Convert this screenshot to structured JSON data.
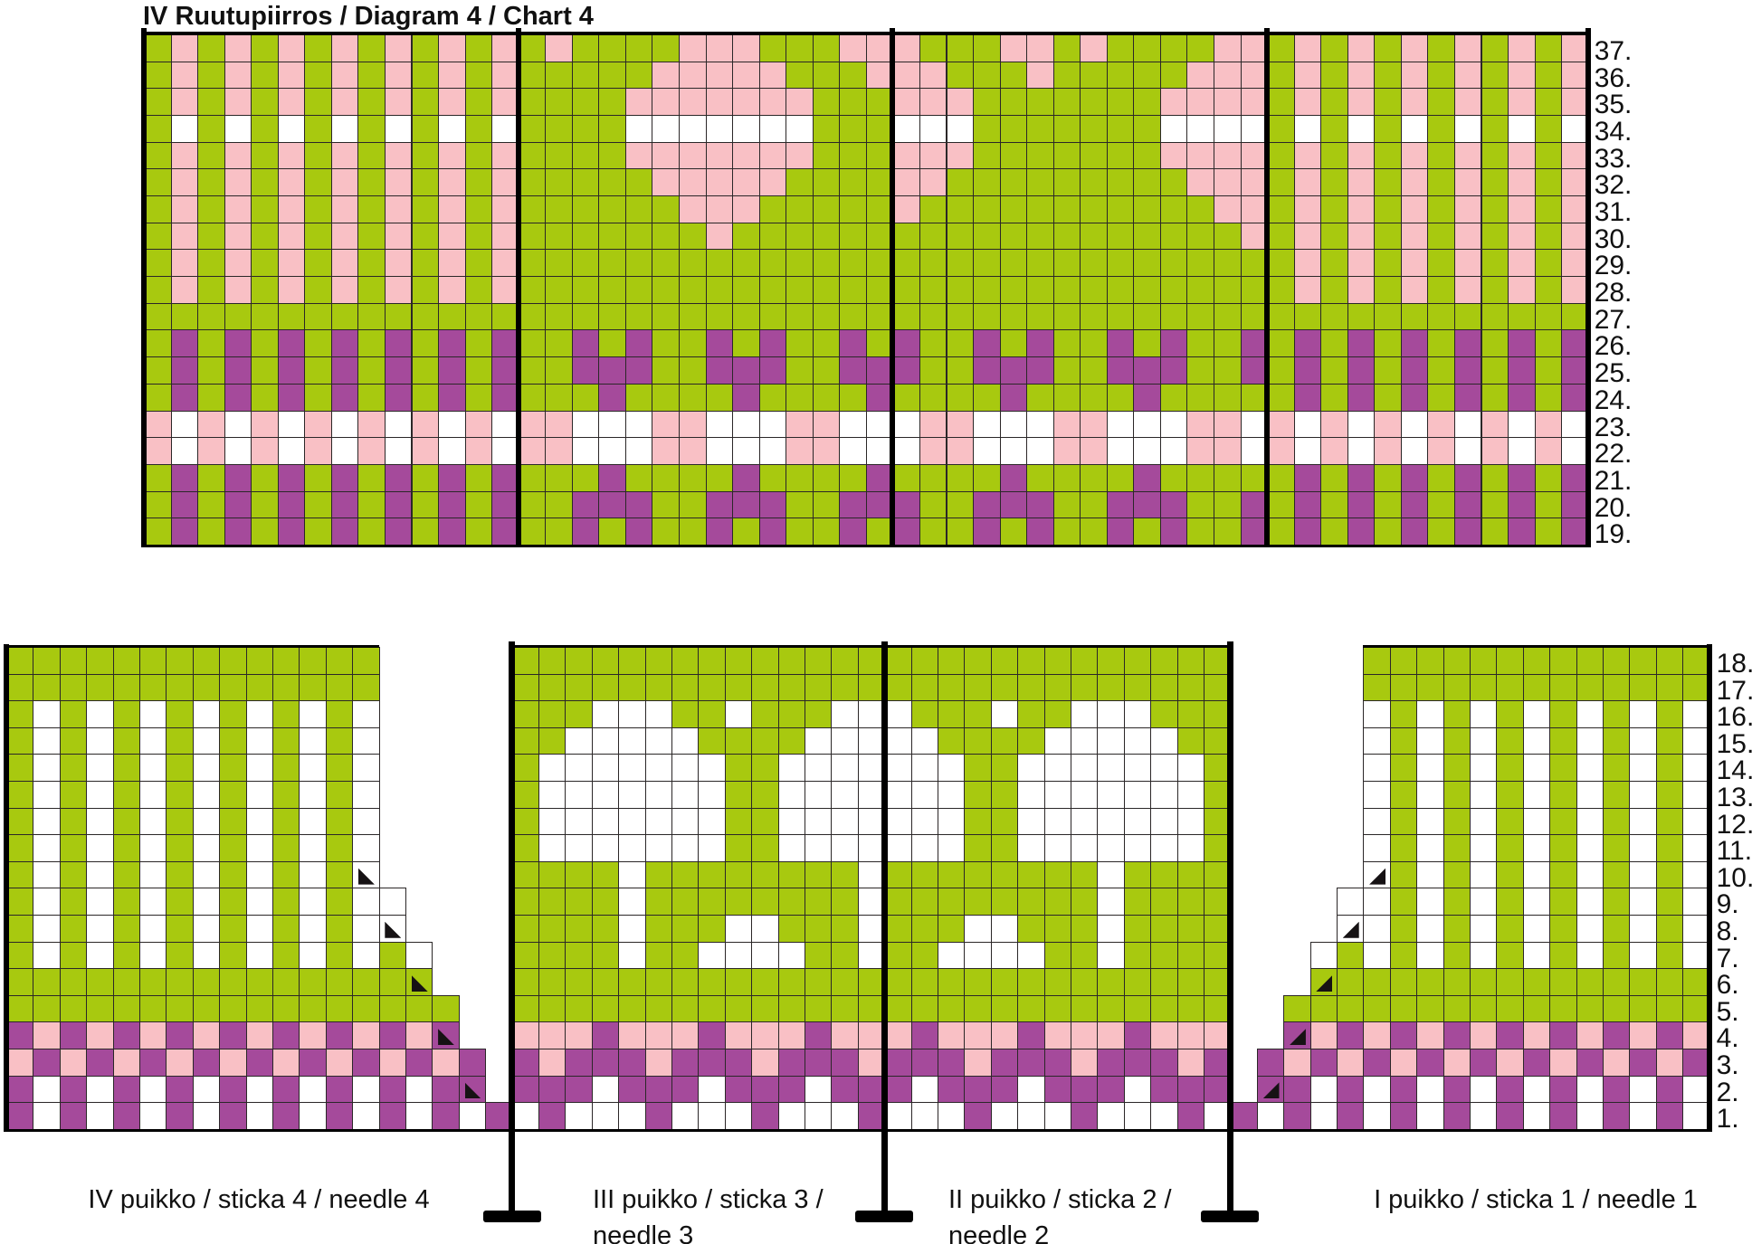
{
  "title": "IV Ruutupiirros / Diagram 4 / Chart 4",
  "colors": {
    "G": "#a8c90f",
    "P": "#f9c0c5",
    "U": "#a54a9b",
    "W": "#ffffff",
    "grid": "#2b2728",
    "line": "#000000",
    "text": "#111111"
  },
  "legend": {
    "G": "green main yarn",
    "P": "pink pattern yarn",
    "U": "purple pattern yarn",
    "W": "white pattern yarn",
    "triangle": "decrease symbol (knit 2 sts together)"
  },
  "top_chart": {
    "row_labels": [
      "37.",
      "36.",
      "35.",
      "34.",
      "33.",
      "32.",
      "31.",
      "30.",
      "29.",
      "28.",
      "27.",
      "26.",
      "25.",
      "24.",
      "23.",
      "22.",
      "21.",
      "20.",
      "19."
    ],
    "sections": [
      {
        "name": "needle-4",
        "rows": [
          "GPGPGPGPGPGPGP",
          "GPGPGPGPGPGPGP",
          "GPGPGPGPGPGPGP",
          "GWGWGWGWGWGWGW",
          "GPGPGPGPGPGPGP",
          "GPGPGPGPGPGPGP",
          "GPGPGPGPGPGPGP",
          "GPGPGPGPGPGPGP",
          "GPGPGPGPGPGPGP",
          "GPGPGPGPGPGPGP",
          "GGGGGGGGGGGGGG",
          "GUGUGUGUGUGUGU",
          "GUGUGUGUGUGUGU",
          "GUGUGUGUGUGUGU",
          "PWPWPWPWPWPWPW",
          "PWPWPWPWPWPWPW",
          "GUGUGUGUGUGUGU",
          "GUGUGUGUGUGUGU",
          "GUGUGUGUGUGUGU"
        ]
      },
      {
        "name": "needle-3",
        "rows": [
          "GPGGGGPPPGGGPP",
          "GGGGGPPPPPGGGP",
          "GGGGPPPPPPPGGG",
          "GGGGWWWWWWWGGG",
          "GGGGPPPPPPPGGG",
          "GGGGGPPPPPGGGG",
          "GGGGGGPPPGGGGG",
          "GGGGGGGPGGGGGG",
          "GGGGGGGGGGGGGG",
          "GGGGGGGGGGGGGG",
          "GGGGGGGGGGGGGG",
          "GGUGUGGUGUGGUG",
          "GGUUUGGUUUGGUU",
          "GGGUGGGGUGGGGU",
          "PPWWWPPWWWPPWW",
          "PPWWWPPWWWPPWW",
          "GGGUGGGGUGGGGU",
          "GGUUUGGUUUGGUU",
          "GGUGUGGUGUGGUG"
        ]
      },
      {
        "name": "needle-2",
        "rows": [
          "PGGGPPGPGGGGPP",
          "PPGGGPGGGGGPPP",
          "PPPGGGGGGGPPPP",
          "WWWGGGGGGGWWWW",
          "PPPGGGGGGGPPPP",
          "PPGGGGGGGGGPPP",
          "PGGGGGGGGGGGPP",
          "GGGGGGGGGGGGGP",
          "GGGGGGGGGGGGGG",
          "GGGGGGGGGGGGGG",
          "GGGGGGGGGGGGGG",
          "UGGUGUGGUGUGGU",
          "UGGUUUGGUUUGGU",
          "GGGGUGGGGUGGGG",
          "WPPWWWPPWWWPPW",
          "WPPWWWPPWWWPPW",
          "GGGGUGGGGUGGGG",
          "UGGUUUGGUUUGGU",
          "UGGUGUGGUGUGGU"
        ]
      },
      {
        "name": "needle-1",
        "rows": [
          "GPGPGPGPGPGP",
          "GPGPGPGPGPGP",
          "GPGPGPGPGPGP",
          "GWGWGWGWGWGW",
          "GPGPGPGPGPGP",
          "GPGPGPGPGPGP",
          "GPGPGPGPGPGP",
          "GPGPGPGPGPGP",
          "GPGPGPGPGPGP",
          "GPGPGPGPGPGP",
          "GGGGGGGGGGGG",
          "GUGUGUGUGUGU",
          "GUGUGUGUGUGU",
          "GUGUGUGUGUGU",
          "PWPWPWPWPWPW",
          "PWPWPWPWPWPW",
          "GUGUGUGUGUGU",
          "GUGUGUGUGUGU",
          "GUGUGUGUGUGU"
        ]
      }
    ]
  },
  "bottom_chart": {
    "row_labels": [
      "18.",
      "17.",
      "16.",
      "15.",
      "14.",
      "13.",
      "12.",
      "11.",
      "10.",
      "9.",
      "8.",
      "7.",
      "6.",
      "5.",
      "4.",
      "3.",
      "2.",
      "1."
    ],
    "sections": [
      {
        "name": "needle-4",
        "tri_dir": "l",
        "rows": [
          {
            "s": 1,
            "c": "GGGGGGGGGGGGGG"
          },
          {
            "s": 1,
            "c": "GGGGGGGGGGGGGG"
          },
          {
            "s": 1,
            "c": "GWGWGWGWGWGWGW"
          },
          {
            "s": 1,
            "c": "GWGWGWGWGWGWGW"
          },
          {
            "s": 1,
            "c": "GWGWGWGWGWGWGW"
          },
          {
            "s": 1,
            "c": "GWGWGWGWGWGWGW"
          },
          {
            "s": 1,
            "c": "GWGWGWGWGWGWGW"
          },
          {
            "s": 1,
            "c": "GWGWGWGWGWGWGW"
          },
          {
            "s": 1,
            "c": "GWGWGWGWGWGWGW",
            "t": 14
          },
          {
            "s": 1,
            "c": "GWGWGWGWGWGWGWW"
          },
          {
            "s": 1,
            "c": "GWGWGWGWGWGWGWW",
            "t": 15
          },
          {
            "s": 1,
            "c": "GWGWGWGWGWGWGWGW"
          },
          {
            "s": 1,
            "c": "GGGGGGGGGGGGGGGG",
            "t": 16
          },
          {
            "s": 1,
            "c": "GGGGGGGGGGGGGGGGG"
          },
          {
            "s": 1,
            "c": "UPUPUPUPUPUPUPUPU",
            "t": 17
          },
          {
            "s": 1,
            "c": "PUPUPUPUPUPUPUPUPU"
          },
          {
            "s": 1,
            "c": "UWUWUWUWUWUWUWUWUU",
            "t": 18
          },
          {
            "s": 1,
            "c": "UWUWUWUWUWUWUWUWUWU"
          }
        ]
      },
      {
        "name": "needle-3",
        "tri_dir": "l",
        "rows": [
          {
            "s": 1,
            "c": "GGGGGGGGGGGGGG"
          },
          {
            "s": 1,
            "c": "GGGGGGGGGGGGGG"
          },
          {
            "s": 1,
            "c": "GGGWWWGGWGGGWW"
          },
          {
            "s": 1,
            "c": "GGWWWWWGGGGWWW"
          },
          {
            "s": 1,
            "c": "GWWWWWWWGGWWWW"
          },
          {
            "s": 1,
            "c": "GWWWWWWWGGWWWW"
          },
          {
            "s": 1,
            "c": "GWWWWWWWGGWWWW"
          },
          {
            "s": 1,
            "c": "GWWWWWWWGGWWWW"
          },
          {
            "s": 1,
            "c": "GGGGWGGGGGGGGW"
          },
          {
            "s": 1,
            "c": "GGGGWGGGGGGGGW"
          },
          {
            "s": 1,
            "c": "GGGGWGGGWWGGGW"
          },
          {
            "s": 1,
            "c": "GGGGWGGWWWWGGW"
          },
          {
            "s": 1,
            "c": "GGGGGGGGGGGGGG"
          },
          {
            "s": 1,
            "c": "GGGGGGGGGGGGGG"
          },
          {
            "s": 1,
            "c": "PPPUPPPUPPPUPP"
          },
          {
            "s": 1,
            "c": "UPUUUPUUUPUUUP"
          },
          {
            "s": 1,
            "c": "UUUWUUUWUUUWUU"
          },
          {
            "s": 1,
            "c": "WUWWWUWWWUWWWU"
          }
        ]
      },
      {
        "name": "needle-2",
        "tri_dir": "l",
        "rows": [
          {
            "s": 1,
            "c": "GGGGGGGGGGGGG"
          },
          {
            "s": 1,
            "c": "GGGGGGGGGGGGG"
          },
          {
            "s": 1,
            "c": "WGGGWGGWWWGGG"
          },
          {
            "s": 1,
            "c": "WWGGGGWWWWWGG"
          },
          {
            "s": 1,
            "c": "WWWGGWWWWWWWG"
          },
          {
            "s": 1,
            "c": "WWWGGWWWWWWWG"
          },
          {
            "s": 1,
            "c": "WWWGGWWWWWWWG"
          },
          {
            "s": 1,
            "c": "WWWGGWWWWWWWG"
          },
          {
            "s": 1,
            "c": "GGGGGGGGWGGGG"
          },
          {
            "s": 1,
            "c": "GGGGGGGGWGGGG"
          },
          {
            "s": 1,
            "c": "GGGWWGGGWGGGG"
          },
          {
            "s": 1,
            "c": "GGWWWWGGWGGGG"
          },
          {
            "s": 1,
            "c": "GGGGGGGGGGGGG"
          },
          {
            "s": 1,
            "c": "GGGGGGGGGGGGG"
          },
          {
            "s": 1,
            "c": "PUPPPUPPPUPPP"
          },
          {
            "s": 1,
            "c": "UUUPUUUPUUUPU"
          },
          {
            "s": 1,
            "c": "UWUUUWUUUWUUU"
          },
          {
            "s": 1,
            "c": "WWWUWWWUWWWUW"
          }
        ]
      },
      {
        "name": "needle-1",
        "tri_dir": "r",
        "rows": [
          {
            "s": 6,
            "c": "GGGGGGGGGGGGG"
          },
          {
            "s": 6,
            "c": "GGGGGGGGGGGGG"
          },
          {
            "s": 6,
            "c": "WGWGWGWGWGWGW"
          },
          {
            "s": 6,
            "c": "WGWGWGWGWGWGW"
          },
          {
            "s": 6,
            "c": "WGWGWGWGWGWGW"
          },
          {
            "s": 6,
            "c": "WGWGWGWGWGWGW"
          },
          {
            "s": 6,
            "c": "WGWGWGWGWGWGW"
          },
          {
            "s": 6,
            "c": "WGWGWGWGWGWGW"
          },
          {
            "s": 6,
            "c": "WGWGWGWGWGWGW",
            "t": 6
          },
          {
            "s": 5,
            "c": "WWGWGWGWGWGWGW"
          },
          {
            "s": 5,
            "c": "WWGWGWGWGWGWGW",
            "t": 5
          },
          {
            "s": 4,
            "c": "WGWGWGWGWGWGWGW"
          },
          {
            "s": 4,
            "c": "GGGGGGGGGGGGGGG",
            "t": 4
          },
          {
            "s": 3,
            "c": "GGGGGGGGGGGGGGGG"
          },
          {
            "s": 3,
            "c": "UPUPUPUPUPUPUPUP",
            "t": 3
          },
          {
            "s": 2,
            "c": "UPUPUPUPUPUPUPUPU"
          },
          {
            "s": 2,
            "c": "UUWUWUWUWUWUWUWUW",
            "t": 2
          },
          {
            "s": 1,
            "c": "UWUWUWUWUWUWUWUWUW"
          }
        ]
      }
    ],
    "needle_labels": [
      {
        "lines": [
          "IV puikko / sticka 4 / needle 4"
        ]
      },
      {
        "lines": [
          "III puikko / sticka 3 /",
          "needle 3"
        ]
      },
      {
        "lines": [
          "II puikko / sticka 2 /",
          "needle 2"
        ]
      },
      {
        "lines": [
          "I puikko / sticka 1 / needle 1"
        ]
      }
    ]
  }
}
